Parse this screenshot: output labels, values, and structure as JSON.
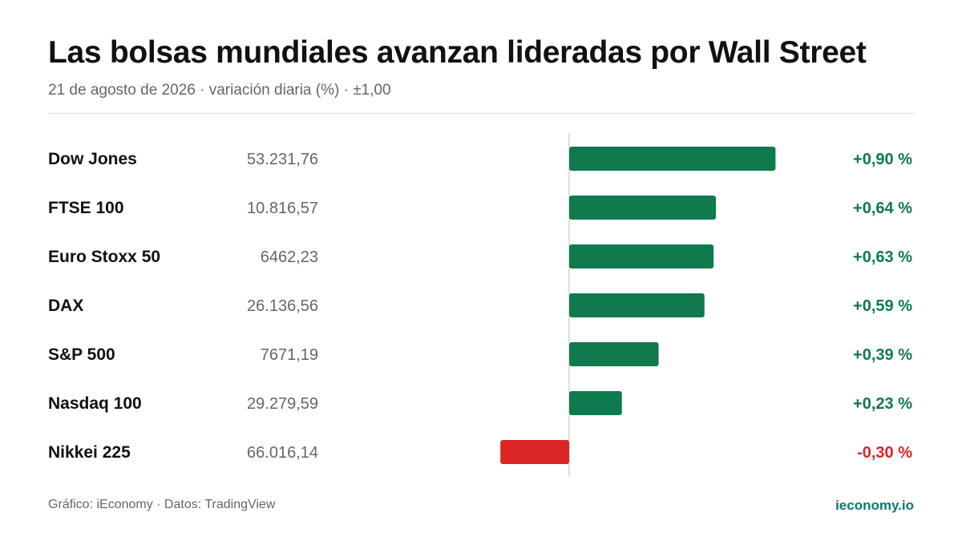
{
  "header": {
    "title": "Las bolsas mundiales avanzan lideradas por Wall Street",
    "subtitle": "21 de agosto de 2026 · variación diaria (%) · ±1,00"
  },
  "footer": {
    "credit": "Gráfico: iEconomy · Datos: TradingView",
    "brand": "ieconomy.io"
  },
  "colors": {
    "positive": "#0e7a4e",
    "negative": "#dc2626",
    "axis": "#dddddd",
    "brand": "#0b7a6e"
  },
  "chart_data": {
    "type": "bar",
    "orientation": "horizontal",
    "xlim": [
      -1.0,
      1.0
    ],
    "categories": [
      "Dow Jones",
      "FTSE 100",
      "Euro Stoxx 50",
      "DAX",
      "S&P 500",
      "Nasdaq 100",
      "Nikkei 225"
    ],
    "levels": [
      "53.231,76",
      "10.816,57",
      "6462,23",
      "26.136,56",
      "7671,19",
      "29.279,59",
      "66.016,14"
    ],
    "values": [
      0.9,
      0.64,
      0.63,
      0.59,
      0.39,
      0.23,
      -0.3
    ],
    "value_labels": [
      "+0,90 %",
      "+0,64 %",
      "+0,63 %",
      "+0,59 %",
      "+0,39 %",
      "+0,23 %",
      "-0,30 %"
    ]
  }
}
